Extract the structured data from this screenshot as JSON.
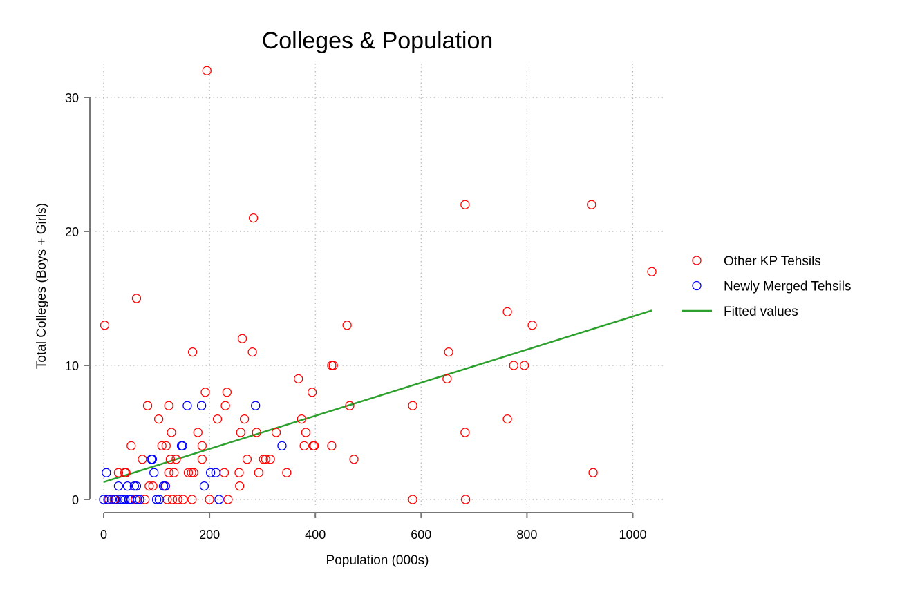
{
  "chart_data": {
    "type": "scatter",
    "title": "Colleges & Population",
    "xlabel": "Population (000s)",
    "ylabel": "Total Colleges (Boys + Girls)",
    "xlim": [
      -25,
      1060
    ],
    "ylim": [
      -1,
      33
    ],
    "xticks": [
      0,
      200,
      400,
      600,
      800,
      1000
    ],
    "yticks": [
      0,
      10,
      20,
      30
    ],
    "grid": true,
    "legend_position": "right",
    "series": [
      {
        "name": "Other KP Tehsils",
        "kind": "scatter",
        "color": "#ff0000",
        "points": [
          [
            2,
            13
          ],
          [
            195,
            32
          ],
          [
            62,
            15
          ],
          [
            283,
            21
          ],
          [
            168,
            11
          ],
          [
            262,
            12
          ],
          [
            281,
            11
          ],
          [
            192,
            8
          ],
          [
            233,
            8
          ],
          [
            83,
            7
          ],
          [
            123,
            7
          ],
          [
            230,
            7
          ],
          [
            104,
            6
          ],
          [
            215,
            6
          ],
          [
            266,
            6
          ],
          [
            52,
            4
          ],
          [
            110,
            4
          ],
          [
            118,
            4
          ],
          [
            128,
            5
          ],
          [
            178,
            5
          ],
          [
            259,
            5
          ],
          [
            289,
            5
          ],
          [
            186,
            4
          ],
          [
            137,
            3
          ],
          [
            126,
            3
          ],
          [
            186,
            3
          ],
          [
            73,
            3
          ],
          [
            40,
            2
          ],
          [
            42,
            2
          ],
          [
            28,
            2
          ],
          [
            123,
            2
          ],
          [
            133,
            2
          ],
          [
            160,
            2
          ],
          [
            166,
            2
          ],
          [
            170,
            2
          ],
          [
            228,
            2
          ],
          [
            256,
            2
          ],
          [
            293,
            2
          ],
          [
            257,
            1
          ],
          [
            86,
            1
          ],
          [
            117,
            1
          ],
          [
            93,
            1
          ],
          [
            140,
            0
          ],
          [
            150,
            0
          ],
          [
            167,
            0
          ],
          [
            200,
            0
          ],
          [
            235,
            0
          ],
          [
            120,
            0
          ],
          [
            78,
            0
          ],
          [
            60,
            0
          ],
          [
            20,
            0
          ],
          [
            10,
            0
          ],
          [
            130,
            0
          ],
          [
            368,
            9
          ],
          [
            374,
            6
          ],
          [
            379,
            4
          ],
          [
            382,
            5
          ],
          [
            394,
            8
          ],
          [
            396,
            4
          ],
          [
            398,
            4
          ],
          [
            326,
            5
          ],
          [
            302,
            3
          ],
          [
            306,
            3
          ],
          [
            315,
            3
          ],
          [
            346,
            2
          ],
          [
            271,
            3
          ],
          [
            431,
            10
          ],
          [
            434,
            10
          ],
          [
            431,
            4
          ],
          [
            460,
            13
          ],
          [
            465,
            7
          ],
          [
            473,
            3
          ],
          [
            584,
            7
          ],
          [
            584,
            0
          ],
          [
            649,
            9
          ],
          [
            652,
            11
          ],
          [
            683,
            22
          ],
          [
            683,
            5
          ],
          [
            684,
            0
          ],
          [
            763,
            14
          ],
          [
            763,
            6
          ],
          [
            775,
            10
          ],
          [
            795,
            10
          ],
          [
            810,
            13
          ],
          [
            922,
            22
          ],
          [
            925,
            2
          ],
          [
            1036,
            17
          ]
        ]
      },
      {
        "name": "Newly Merged Tehsils",
        "kind": "scatter",
        "color": "#0000ff",
        "points": [
          [
            5,
            2
          ],
          [
            0,
            0
          ],
          [
            8,
            0
          ],
          [
            15,
            0
          ],
          [
            22,
            0
          ],
          [
            28,
            1
          ],
          [
            32,
            0
          ],
          [
            36,
            0
          ],
          [
            40,
            0
          ],
          [
            45,
            1
          ],
          [
            48,
            0
          ],
          [
            52,
            0
          ],
          [
            58,
            1
          ],
          [
            62,
            1
          ],
          [
            64,
            0
          ],
          [
            68,
            0
          ],
          [
            90,
            3
          ],
          [
            92,
            3
          ],
          [
            95,
            2
          ],
          [
            100,
            0
          ],
          [
            105,
            0
          ],
          [
            113,
            1
          ],
          [
            116,
            1
          ],
          [
            147,
            4
          ],
          [
            149,
            4
          ],
          [
            158,
            7
          ],
          [
            185,
            7
          ],
          [
            190,
            1
          ],
          [
            202,
            2
          ],
          [
            212,
            2
          ],
          [
            218,
            0
          ],
          [
            287,
            7
          ],
          [
            337,
            4
          ]
        ]
      },
      {
        "name": "Fitted values",
        "kind": "line",
        "color": "#2ca02c",
        "points": [
          [
            0,
            1.3
          ],
          [
            1036,
            14.1
          ]
        ]
      }
    ]
  }
}
